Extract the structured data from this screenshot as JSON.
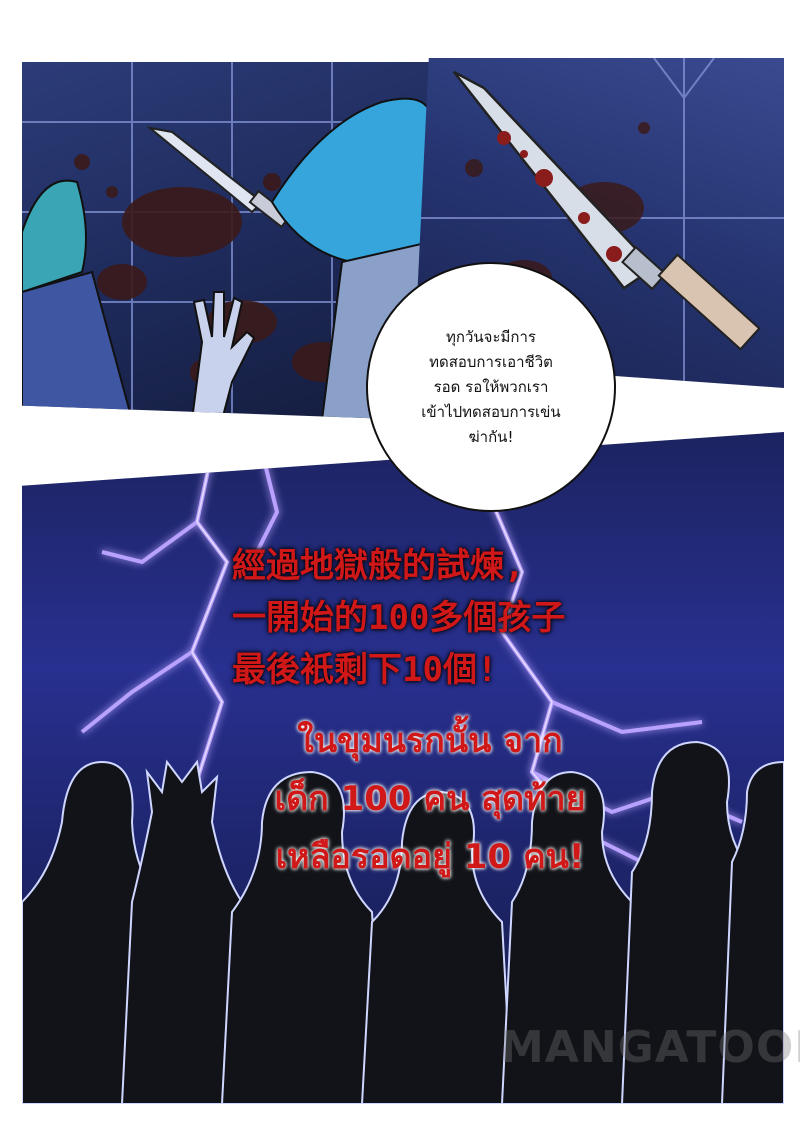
{
  "bubble": {
    "lines": [
      "ทุกวันจะมีการ",
      "ทดสอบการเอาชีวิต",
      "รอด รอให้พวกเรา",
      "เข้าไปทดสอบการเข่น",
      "ฆ่ากัน!"
    ]
  },
  "narration_cn": {
    "lines": [
      "經過地獄般的試煉,",
      "一開始的100多個孩子",
      "最後衹剩下10個!"
    ]
  },
  "narration_th": {
    "lines": [
      "ในขุมนรกนั้น จาก",
      "เด็ก 100 คน สุดท้าย",
      "เหลือรอดอยู่ 10 คน!"
    ]
  },
  "watermark": "MANGATOON",
  "colors": {
    "narration": "#d01818",
    "lightning": "#b9a2ff",
    "panel_blue": "#283090",
    "blood": "#3a1a1a"
  }
}
